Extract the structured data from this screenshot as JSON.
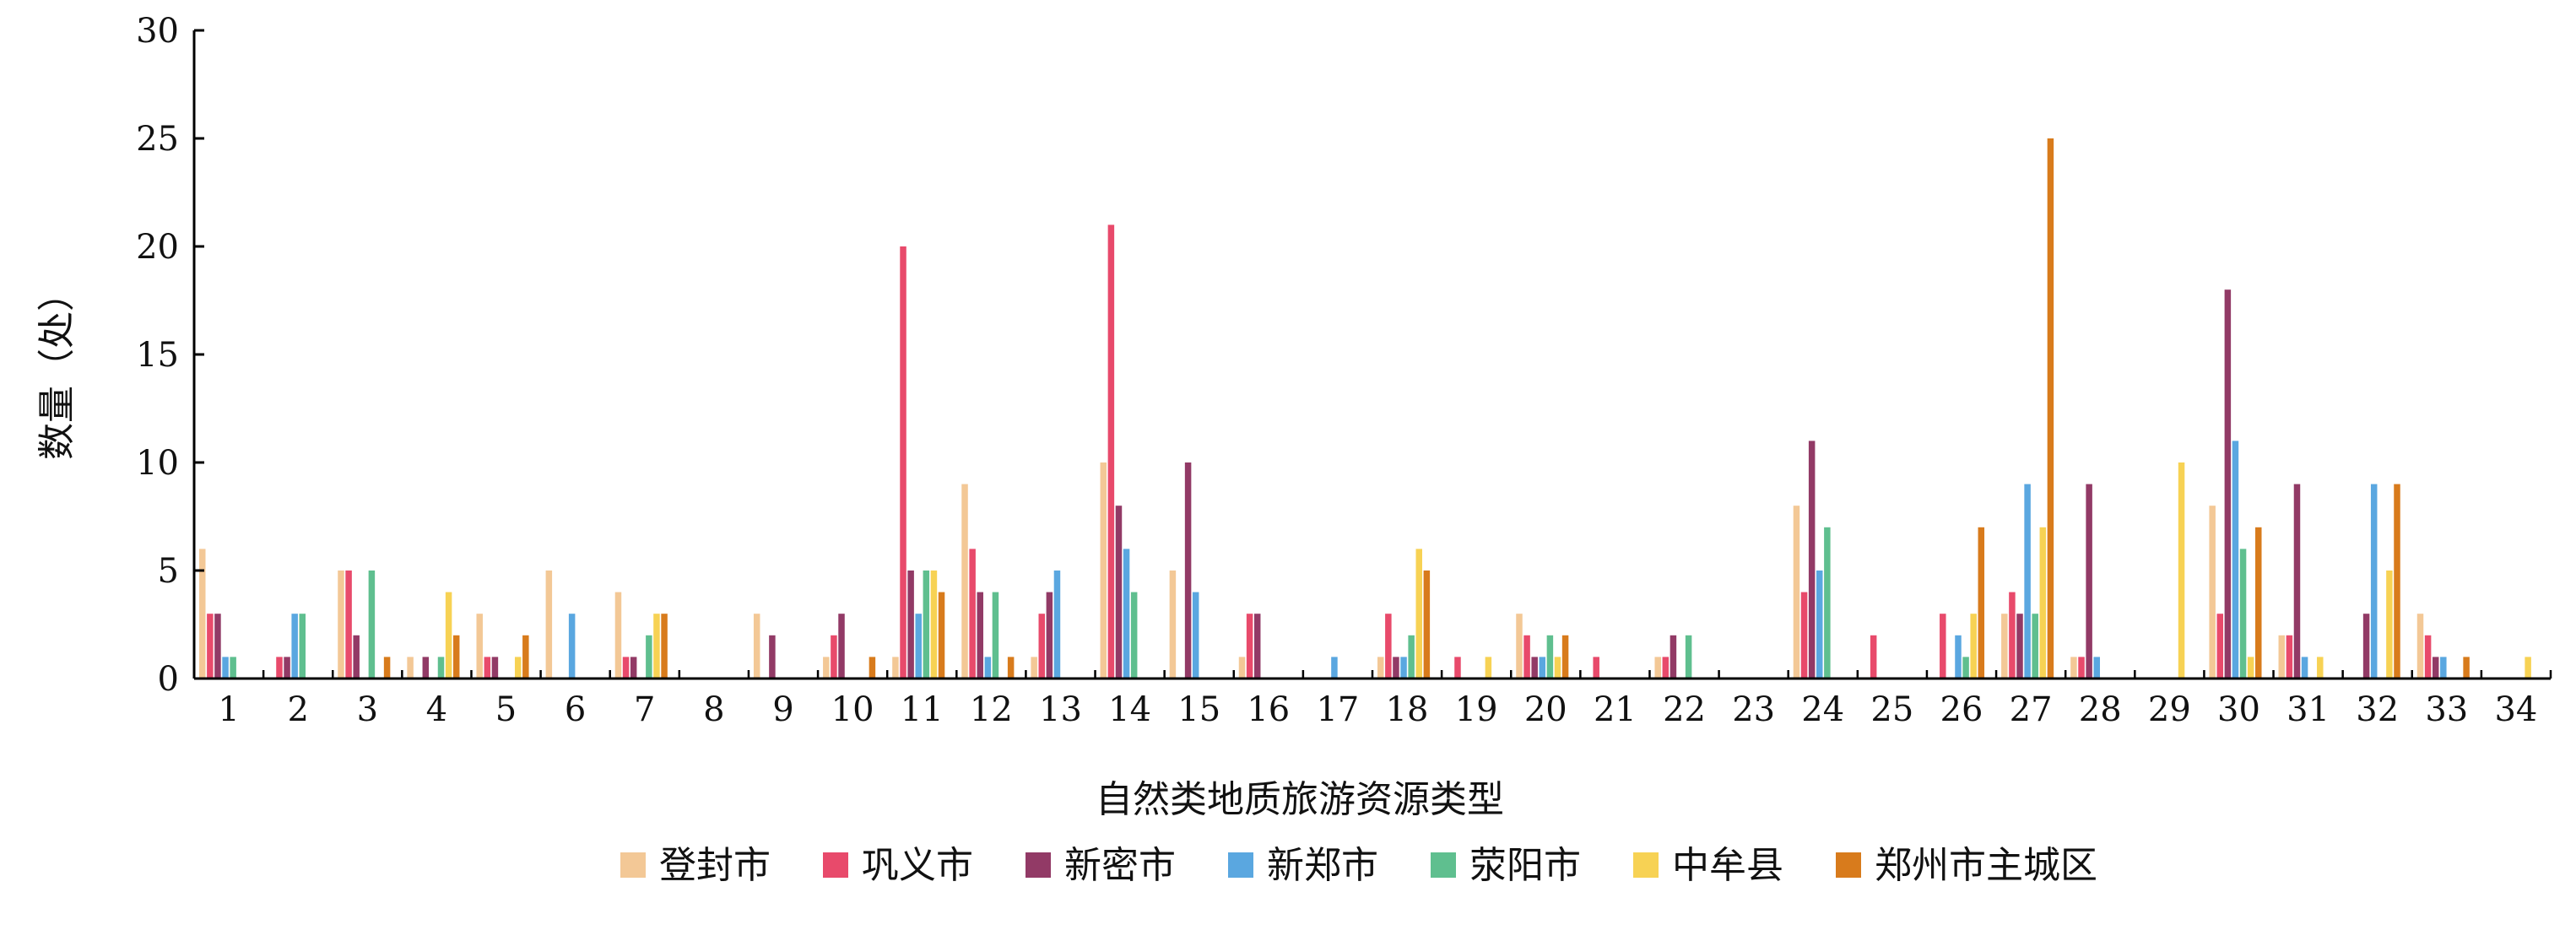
{
  "chart_data": {
    "type": "bar",
    "title": "",
    "xlabel": "自然类地质旅游资源类型",
    "ylabel": "数量（处）",
    "ylim": [
      0,
      30
    ],
    "yticks": [
      0,
      5,
      10,
      15,
      20,
      25,
      30
    ],
    "grid": false,
    "legend_position": "bottom",
    "categories": [
      "1",
      "2",
      "3",
      "4",
      "5",
      "6",
      "7",
      "8",
      "9",
      "10",
      "11",
      "12",
      "13",
      "14",
      "15",
      "16",
      "17",
      "18",
      "19",
      "20",
      "21",
      "22",
      "23",
      "24",
      "25",
      "26",
      "27",
      "28",
      "29",
      "30",
      "31",
      "32",
      "33",
      "34"
    ],
    "series": [
      {
        "name": "登封市",
        "color": "#f3c896",
        "values": [
          6,
          0,
          5,
          1,
          3,
          5,
          4,
          0,
          3,
          1,
          1,
          9,
          1,
          10,
          5,
          1,
          0,
          1,
          0,
          3,
          0,
          1,
          0,
          8,
          0,
          0,
          3,
          1,
          0,
          8,
          2,
          0,
          3,
          0
        ]
      },
      {
        "name": "巩义市",
        "color": "#e84a6b",
        "values": [
          3,
          1,
          5,
          0,
          1,
          0,
          1,
          0,
          0,
          2,
          20,
          6,
          3,
          21,
          0,
          3,
          0,
          3,
          1,
          2,
          1,
          1,
          0,
          4,
          2,
          3,
          4,
          1,
          0,
          3,
          2,
          0,
          2,
          0
        ]
      },
      {
        "name": "新密市",
        "color": "#923a66",
        "values": [
          3,
          1,
          2,
          1,
          1,
          0,
          1,
          0,
          2,
          3,
          5,
          4,
          4,
          8,
          10,
          3,
          0,
          1,
          0,
          1,
          0,
          2,
          0,
          11,
          0,
          0,
          3,
          9,
          0,
          18,
          9,
          3,
          1,
          0
        ]
      },
      {
        "name": "新郑市",
        "color": "#5aa7e0",
        "values": [
          1,
          3,
          0,
          0,
          0,
          3,
          0,
          0,
          0,
          0,
          3,
          1,
          5,
          6,
          4,
          0,
          1,
          1,
          0,
          1,
          0,
          0,
          0,
          5,
          0,
          2,
          9,
          1,
          0,
          11,
          1,
          9,
          1,
          0
        ]
      },
      {
        "name": "荥阳市",
        "color": "#5fbf8f",
        "values": [
          1,
          3,
          5,
          1,
          0,
          0,
          2,
          0,
          0,
          0,
          5,
          4,
          0,
          4,
          0,
          0,
          0,
          2,
          0,
          2,
          0,
          2,
          0,
          7,
          0,
          1,
          3,
          0,
          0,
          6,
          0,
          0,
          0,
          0
        ]
      },
      {
        "name": "中牟县",
        "color": "#f7d254",
        "values": [
          0,
          0,
          0,
          4,
          1,
          0,
          3,
          0,
          0,
          0,
          5,
          0,
          0,
          0,
          0,
          0,
          0,
          6,
          1,
          1,
          0,
          0,
          0,
          0,
          0,
          3,
          7,
          0,
          10,
          1,
          1,
          5,
          0,
          1
        ]
      },
      {
        "name": "郑州市主城区",
        "color": "#d87b1c",
        "values": [
          0,
          0,
          1,
          2,
          2,
          0,
          3,
          0,
          0,
          1,
          4,
          1,
          0,
          0,
          0,
          0,
          0,
          5,
          0,
          2,
          0,
          0,
          0,
          0,
          0,
          7,
          25,
          0,
          0,
          7,
          0,
          9,
          1,
          0
        ]
      }
    ]
  }
}
